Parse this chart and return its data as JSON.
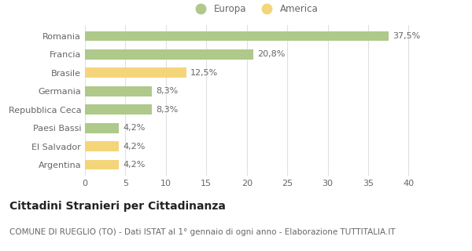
{
  "categories": [
    "Romania",
    "Francia",
    "Brasile",
    "Germania",
    "Repubblica Ceca",
    "Paesi Bassi",
    "El Salvador",
    "Argentina"
  ],
  "values": [
    37.5,
    20.8,
    12.5,
    8.3,
    8.3,
    4.2,
    4.2,
    4.2
  ],
  "labels": [
    "37,5%",
    "20,8%",
    "12,5%",
    "8,3%",
    "8,3%",
    "4,2%",
    "4,2%",
    "4,2%"
  ],
  "colors": [
    "#aec98a",
    "#aec98a",
    "#f5d57a",
    "#aec98a",
    "#aec98a",
    "#aec98a",
    "#f5d57a",
    "#f5d57a"
  ],
  "legend_europa_color": "#aec98a",
  "legend_america_color": "#f5d57a",
  "legend_europa_label": "Europa",
  "legend_america_label": "America",
  "xlim": [
    0,
    42
  ],
  "xticks": [
    0,
    5,
    10,
    15,
    20,
    25,
    30,
    35,
    40
  ],
  "title": "Cittadini Stranieri per Cittadinanza",
  "subtitle": "COMUNE DI RUEGLIO (TO) - Dati ISTAT al 1° gennaio di ogni anno - Elaborazione TUTTITALIA.IT",
  "grid_color": "#e0e0e0",
  "background_color": "#ffffff",
  "bar_height": 0.55,
  "label_fontsize": 8,
  "tick_fontsize": 8,
  "title_fontsize": 10,
  "subtitle_fontsize": 7.5,
  "text_color": "#666666",
  "title_color": "#222222"
}
